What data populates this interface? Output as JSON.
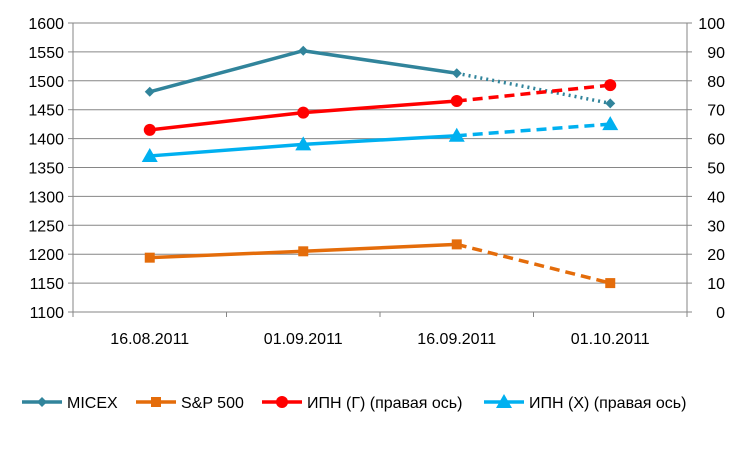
{
  "chart_data": {
    "type": "line",
    "categories": [
      "16.08.2011",
      "01.09.2011",
      "16.09.2011",
      "01.10.2011"
    ],
    "left_axis": {
      "ylim": [
        1100,
        1600
      ],
      "ticks": [
        "1100",
        "1150",
        "1200",
        "1250",
        "1300",
        "1350",
        "1400",
        "1450",
        "1500",
        "1550",
        "1600"
      ]
    },
    "right_axis": {
      "ylim": [
        0,
        100
      ],
      "ticks": [
        "0",
        "10",
        "20",
        "30",
        "40",
        "50",
        "60",
        "70",
        "80",
        "90",
        "100"
      ]
    },
    "grid": true,
    "legend_position": "bottom",
    "series": [
      {
        "name": "MICEX",
        "axis": "left",
        "color": "#31849B",
        "marker": "diamond",
        "last_segment_style": "dotted",
        "values": [
          1481,
          1552,
          1513,
          1461
        ]
      },
      {
        "name": "S&P 500",
        "axis": "left",
        "color": "#E46C0A",
        "marker": "square",
        "last_segment_style": "dashed",
        "values": [
          1194,
          1205,
          1217,
          1150
        ]
      },
      {
        "name": "ИПН (Г) (правая ось)",
        "axis": "right",
        "color": "#FF0000",
        "marker": "circle",
        "last_segment_style": "dashed",
        "values": [
          63,
          69,
          73,
          78.5
        ]
      },
      {
        "name": "ИПН (Х) (правая ось)",
        "axis": "right",
        "color": "#00B0F0",
        "marker": "triangle",
        "last_segment_style": "dashed",
        "values": [
          54,
          58,
          61,
          65
        ]
      }
    ]
  }
}
